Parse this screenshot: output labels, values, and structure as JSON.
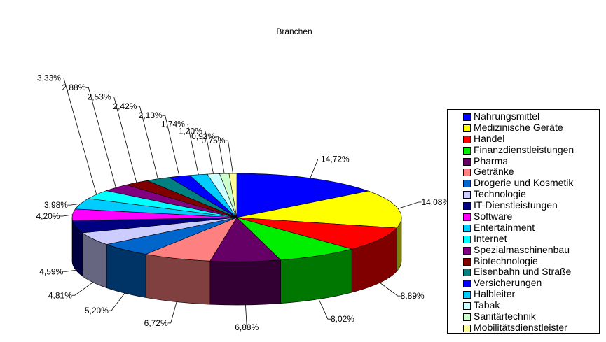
{
  "chart_data": {
    "type": "pie",
    "title": "Branchen",
    "legend_position": "right",
    "style": "3d-exploded",
    "slices": [
      {
        "name": "Nahrungsmittel",
        "value": 14.72,
        "label": "14,72%",
        "color": "#0000ff"
      },
      {
        "name": "Medizinische Geräte",
        "value": 14.08,
        "label": "14,08%",
        "color": "#ffff00"
      },
      {
        "name": "Handel",
        "value": 8.89,
        "label": "8,89%",
        "color": "#ff0000"
      },
      {
        "name": "Finanzdienstleistungen",
        "value": 8.02,
        "label": "8,02%",
        "color": "#00ee00"
      },
      {
        "name": "Pharma",
        "value": 6.88,
        "label": "6,88%",
        "color": "#660066"
      },
      {
        "name": "Getränke",
        "value": 6.72,
        "label": "6,72%",
        "color": "#ff8080"
      },
      {
        "name": "Drogerie und Kosmetik",
        "value": 5.2,
        "label": "5,20%",
        "color": "#0066cc"
      },
      {
        "name": "Technologie",
        "value": 4.81,
        "label": "4,81%",
        "color": "#ccccff"
      },
      {
        "name": "IT-Dienstleistungen",
        "value": 4.59,
        "label": "4,59%",
        "color": "#000080"
      },
      {
        "name": "Software",
        "value": 4.2,
        "label": "4,20%",
        "color": "#ff00ff"
      },
      {
        "name": "Entertainment",
        "value": 3.98,
        "label": "3,98%",
        "color": "#00ccff"
      },
      {
        "name": "Internet",
        "value": 3.33,
        "label": "3,33%",
        "color": "#00ffff"
      },
      {
        "name": "Spezialmaschinenbau",
        "value": 2.88,
        "label": "2,88%",
        "color": "#800080"
      },
      {
        "name": "Biotechnologie",
        "value": 2.53,
        "label": "2,53%",
        "color": "#800000"
      },
      {
        "name": "Eisenbahn und Straße",
        "value": 2.42,
        "label": "2,42%",
        "color": "#008080"
      },
      {
        "name": "Versicherungen",
        "value": 2.13,
        "label": "2,13%",
        "color": "#0000ff"
      },
      {
        "name": "Halbleiter",
        "value": 1.74,
        "label": "1,74%",
        "color": "#00ccff"
      },
      {
        "name": "Tabak",
        "value": 1.2,
        "label": "1,20%",
        "color": "#ccffff"
      },
      {
        "name": "Sanitärtechnik",
        "value": 0.92,
        "label": "0,92%",
        "color": "#ccffcc"
      },
      {
        "name": "Mobilitätsdienstleister",
        "value": 0.75,
        "label": "0,75%",
        "color": "#ffff99"
      }
    ]
  }
}
